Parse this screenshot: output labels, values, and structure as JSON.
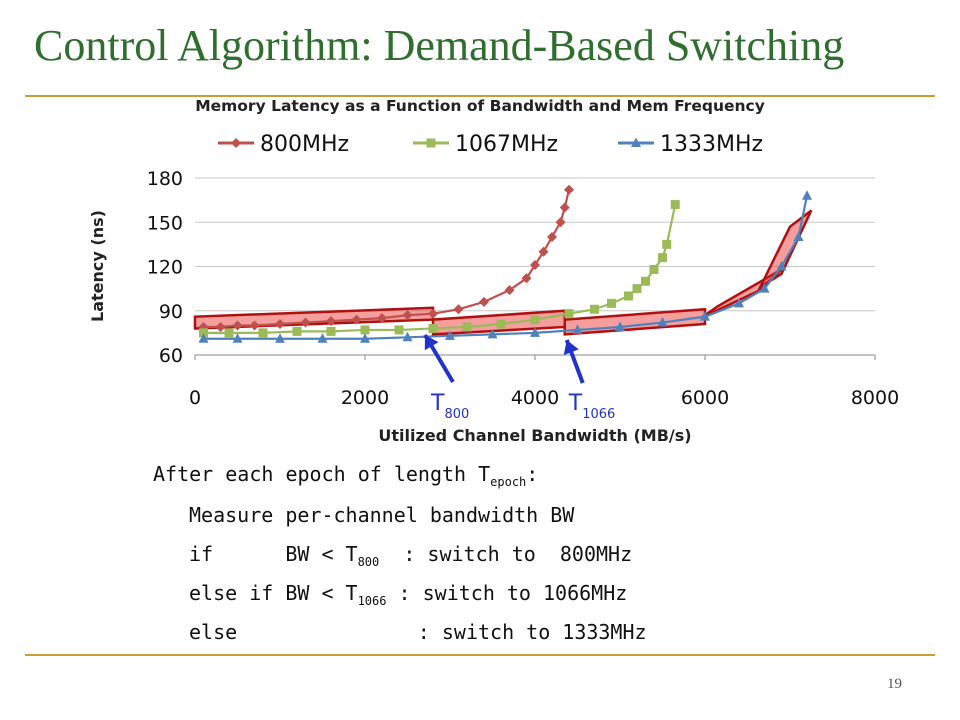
{
  "slide": {
    "title": "Control Algorithm: Demand-Based Switching",
    "page_number": "19",
    "accent_color": "#c8a032",
    "title_color": "#2e6e2e"
  },
  "chart_data": {
    "type": "line",
    "title": "Memory Latency as a Function of Bandwidth and Mem Frequency",
    "xlabel": "Utilized Channel Bandwidth (MB/s)",
    "ylabel": "Latency (ns)",
    "xlim": [
      0,
      8000
    ],
    "ylim": [
      60,
      180
    ],
    "xticks": [
      "0",
      "2000",
      "4000",
      "6000",
      "8000"
    ],
    "yticks": [
      "60",
      "90",
      "120",
      "150",
      "180"
    ],
    "grid": true,
    "legend_position": "top",
    "series": [
      {
        "name": "800MHz",
        "color": "#c0504d",
        "marker": "diamond",
        "x": [
          100,
          300,
          500,
          700,
          1000,
          1300,
          1600,
          1900,
          2200,
          2500,
          2800,
          3100,
          3400,
          3700,
          3900,
          4000,
          4100,
          4200,
          4300,
          4350,
          4400
        ],
        "y": [
          79,
          79,
          80,
          80,
          81,
          82,
          83,
          84,
          85,
          87,
          88,
          91,
          96,
          104,
          112,
          121,
          130,
          140,
          150,
          160,
          172
        ]
      },
      {
        "name": "1067MHz",
        "color": "#9bbb59",
        "marker": "square",
        "x": [
          100,
          400,
          800,
          1200,
          1600,
          2000,
          2400,
          2800,
          3200,
          3600,
          4000,
          4400,
          4700,
          4900,
          5100,
          5200,
          5300,
          5400,
          5500,
          5550,
          5650
        ],
        "y": [
          75,
          75,
          75,
          76,
          76,
          77,
          77,
          78,
          79,
          81,
          84,
          88,
          91,
          95,
          100,
          105,
          110,
          118,
          126,
          135,
          162
        ]
      },
      {
        "name": "1333MHz",
        "color": "#4f81bd",
        "marker": "triangle",
        "x": [
          100,
          500,
          1000,
          1500,
          2000,
          2500,
          3000,
          3500,
          4000,
          4500,
          5000,
          5500,
          6000,
          6400,
          6700,
          6900,
          7100,
          7200
        ],
        "y": [
          71,
          71,
          71,
          71,
          71,
          72,
          73,
          74,
          75,
          77,
          79,
          82,
          86,
          95,
          105,
          120,
          140,
          168
        ]
      }
    ],
    "annotations": {
      "t800": {
        "label": "T",
        "sub": "800",
        "x": 2800
      },
      "t1066": {
        "label": "T",
        "sub": "1066",
        "x": 4350
      }
    }
  },
  "algorithm": {
    "line1_pre": "After each epoch of length T",
    "line1_sub": "epoch",
    "line1_post": ":",
    "line2": "Measure per-channel bandwidth BW",
    "line3_pre": "if      BW < T",
    "line3_sub": "800",
    "line3_post": "  : switch to  800MHz",
    "line4_pre": "else if BW < T",
    "line4_sub": "1066",
    "line4_post": " : switch to 1066MHz",
    "line5": "else               : switch to 1333MHz"
  }
}
